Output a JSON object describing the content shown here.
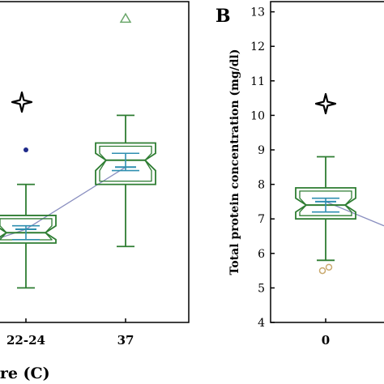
{
  "chart_data": [
    {
      "type": "box",
      "panel_label": "",
      "xlabel": "ure (C)",
      "ylabel": "",
      "categories": [
        "22-24",
        "37"
      ],
      "boxes": [
        {
          "category": "22-24",
          "whisker_low": 5.0,
          "q1": 6.3,
          "median": 6.6,
          "q3": 7.1,
          "whisker_high": 8.0,
          "mean": 6.7,
          "notch_low": 6.4,
          "notch_high": 6.8
        },
        {
          "category": "37",
          "whisker_low": 6.2,
          "q1": 8.0,
          "median": 8.7,
          "q3": 9.2,
          "whisker_high": 10.0,
          "mean": 8.5,
          "notch_low": 8.4,
          "notch_high": 8.9
        }
      ],
      "outliers": [
        {
          "category": "22-24",
          "value": 9.0,
          "marker": "filled-dot"
        },
        {
          "category": "37",
          "value": 12.8,
          "marker": "open-triangle"
        }
      ],
      "mean_line": true,
      "significance_marker": "✦"
    },
    {
      "type": "box",
      "panel_label": "B",
      "xlabel": "",
      "ylabel": "Total protein concentration (mg/dl)",
      "ylim": [
        3.5,
        13.2
      ],
      "yticks": [
        4,
        5,
        6,
        7,
        8,
        9,
        10,
        11,
        12,
        13
      ],
      "categories": [
        "0"
      ],
      "boxes": [
        {
          "category": "0",
          "whisker_low": 5.8,
          "q1": 7.0,
          "median": 7.4,
          "q3": 7.9,
          "whisker_high": 8.8,
          "mean": 7.5,
          "notch_low": 7.2,
          "notch_high": 7.6
        }
      ],
      "outliers": [
        {
          "category": "0",
          "value": 5.5,
          "marker": "open-circle"
        },
        {
          "category": "0",
          "value": 5.6,
          "marker": "open-circle"
        }
      ],
      "mean_line": true,
      "significance_marker": "✦"
    }
  ],
  "colors": {
    "box": "#2e7d32",
    "mean_bar": "#2f8fb0",
    "trend": "#8a8fc0",
    "outlier_dot": "#1f2a8a",
    "outlier_open": "#c9a96e",
    "triangle": "#6aa66a",
    "axis": "#000000"
  }
}
